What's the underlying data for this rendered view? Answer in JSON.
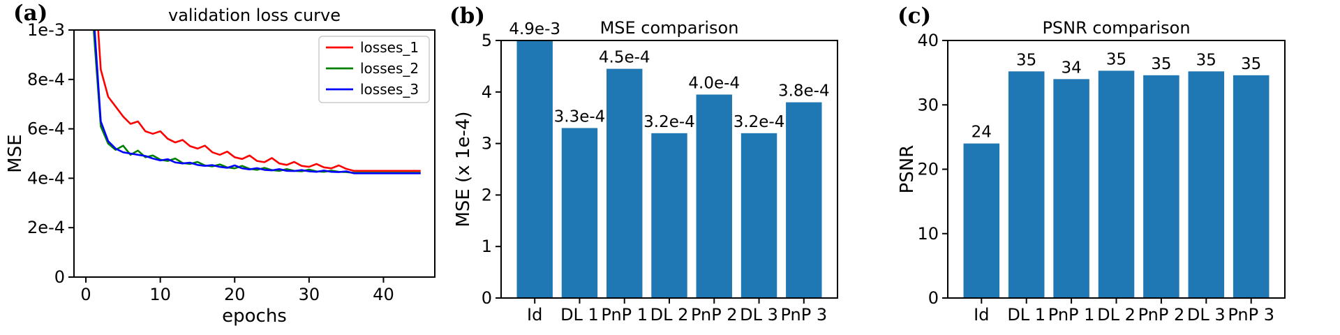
{
  "figure": {
    "background": "#ffffff",
    "axis_color": "#000000",
    "bar_color": "#1f77b4"
  },
  "chart_data": [
    {
      "id": "validation-loss-curve",
      "type": "line",
      "panel_label": "(a)",
      "title": "validation loss curve",
      "xlabel": "epochs",
      "ylabel": "MSE",
      "xlim": [
        -1.6,
        46.9
      ],
      "ylim": [
        0,
        10
      ],
      "y_value_unit": "1e-4",
      "x_ticks": [
        0,
        10,
        20,
        30,
        40
      ],
      "y_tick_values": [
        0,
        2,
        4,
        6,
        8,
        10
      ],
      "y_tick_labels": [
        "0",
        "2e-4",
        "4e-4",
        "6e-4",
        "8e-4",
        "1e-3"
      ],
      "grid": false,
      "legend_position": "top-right",
      "x": [
        0,
        1,
        2,
        3,
        4,
        5,
        6,
        7,
        8,
        9,
        10,
        11,
        12,
        13,
        14,
        15,
        16,
        17,
        18,
        19,
        20,
        21,
        22,
        23,
        24,
        25,
        26,
        27,
        28,
        29,
        30,
        31,
        32,
        33,
        34,
        35,
        36,
        37,
        38,
        39,
        40,
        41,
        42,
        43,
        44,
        45
      ],
      "series": [
        {
          "name": "losses_1",
          "color": "#ff0000",
          "values": [
            50,
            13,
            8.4,
            7.3,
            6.9,
            6.5,
            6.2,
            6.3,
            5.9,
            5.8,
            5.9,
            5.6,
            5.45,
            5.55,
            5.3,
            5.2,
            5.32,
            5.05,
            4.95,
            5.08,
            4.85,
            4.78,
            4.92,
            4.7,
            4.65,
            4.82,
            4.6,
            4.54,
            4.66,
            4.5,
            4.46,
            4.58,
            4.44,
            4.4,
            4.52,
            4.38,
            4.3,
            4.3,
            4.3,
            4.3,
            4.3,
            4.3,
            4.3,
            4.3,
            4.3,
            4.3
          ]
        },
        {
          "name": "losses_2",
          "color": "#008000",
          "values": [
            45,
            10.2,
            6.1,
            5.4,
            5.15,
            5.32,
            4.95,
            5.12,
            4.85,
            4.92,
            4.75,
            4.7,
            4.8,
            4.62,
            4.58,
            4.66,
            4.52,
            4.48,
            4.56,
            4.44,
            4.4,
            4.5,
            4.38,
            4.34,
            4.42,
            4.33,
            4.3,
            4.37,
            4.3,
            4.28,
            4.35,
            4.28,
            4.26,
            4.31,
            4.26,
            4.25,
            4.22,
            4.22,
            4.22,
            4.22,
            4.22,
            4.22,
            4.22,
            4.22,
            4.22,
            4.22
          ]
        },
        {
          "name": "losses_3",
          "color": "#0000ff",
          "values": [
            47,
            10.8,
            6.3,
            5.5,
            5.2,
            5.05,
            5.0,
            4.95,
            4.9,
            4.8,
            4.72,
            4.77,
            4.64,
            4.6,
            4.63,
            4.54,
            4.5,
            4.53,
            4.46,
            4.42,
            4.52,
            4.4,
            4.36,
            4.41,
            4.34,
            4.32,
            4.37,
            4.3,
            4.29,
            4.33,
            4.28,
            4.26,
            4.31,
            4.26,
            4.25,
            4.28,
            4.2,
            4.2,
            4.2,
            4.2,
            4.2,
            4.2,
            4.2,
            4.2,
            4.2,
            4.2
          ]
        }
      ]
    },
    {
      "id": "mse-comparison",
      "type": "bar",
      "panel_label": "(b)",
      "title": "MSE comparison",
      "xlabel": "",
      "ylabel": "MSE (x 1e-4)",
      "categories": [
        "Id",
        "DL 1",
        "PnP 1",
        "DL 2",
        "PnP 2",
        "DL 3",
        "PnP 3"
      ],
      "values": [
        49,
        3.3,
        4.45,
        3.2,
        3.95,
        3.2,
        3.8
      ],
      "bar_labels": [
        "4.9e-3",
        "3.3e-4",
        "4.5e-4",
        "3.2e-4",
        "4.0e-4",
        "3.2e-4",
        "3.8e-4"
      ],
      "ylim": [
        0,
        5
      ],
      "y_tick_values": [
        0,
        1,
        2,
        3,
        4,
        5
      ],
      "y_tick_labels": [
        "0",
        "1",
        "2",
        "3",
        "4",
        "5"
      ],
      "grid": false,
      "bar_color": "#1f77b4"
    },
    {
      "id": "psnr-comparison",
      "type": "bar",
      "panel_label": "(c)",
      "title": "PSNR comparison",
      "xlabel": "",
      "ylabel": "PSNR",
      "categories": [
        "Id",
        "DL 1",
        "PnP 1",
        "DL 2",
        "PnP 2",
        "DL 3",
        "PnP 3"
      ],
      "values": [
        24,
        35.2,
        34.0,
        35.3,
        34.6,
        35.2,
        34.6
      ],
      "bar_labels": [
        "24",
        "35",
        "34",
        "35",
        "35",
        "35",
        "35"
      ],
      "ylim": [
        0,
        40
      ],
      "y_tick_values": [
        0,
        10,
        20,
        30,
        40
      ],
      "y_tick_labels": [
        "0",
        "10",
        "20",
        "30",
        "40"
      ],
      "grid": false,
      "bar_color": "#1f77b4"
    }
  ]
}
